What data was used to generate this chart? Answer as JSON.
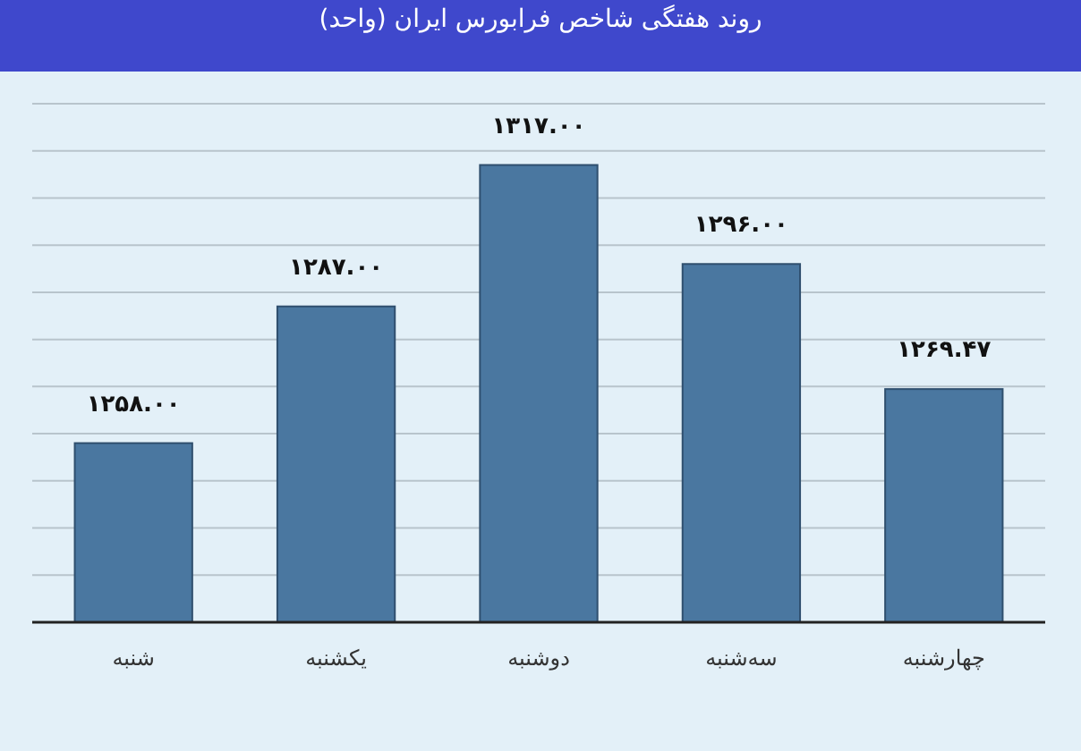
{
  "chart_data": {
    "type": "bar",
    "title": "روند هفتگی شاخص فرابورس ایران (واحد)",
    "categories": [
      "شنبه",
      "یکشنبه",
      "دوشنبه",
      "سه‌شنبه",
      "چهارشنبه"
    ],
    "values": [
      1258.0,
      1287.0,
      1317.0,
      1296.0,
      1269.47
    ],
    "value_labels": [
      "۱۲۵۸.۰۰",
      "۱۲۸۷.۰۰",
      "۱۳۱۷.۰۰",
      "۱۲۹۶.۰۰",
      "۱۲۶۹.۴۷"
    ],
    "color": "#4a77a0",
    "ylim": [
      1220,
      1330
    ],
    "yticks": [
      {
        "value": 1230,
        "label": null
      },
      {
        "value": 1240,
        "label": null
      },
      {
        "value": 1250,
        "label": null
      },
      {
        "value": 1260,
        "label": null
      },
      {
        "value": 1270,
        "label": null
      },
      {
        "value": 1280,
        "label": null
      },
      {
        "value": 1290,
        "label": null
      },
      {
        "value": 1300,
        "label": null
      },
      {
        "value": 1310,
        "label": null
      },
      {
        "value": 1320,
        "label": null
      },
      {
        "value": 1330,
        "label": null
      }
    ],
    "grid": "y",
    "tick_labels": "x"
  }
}
